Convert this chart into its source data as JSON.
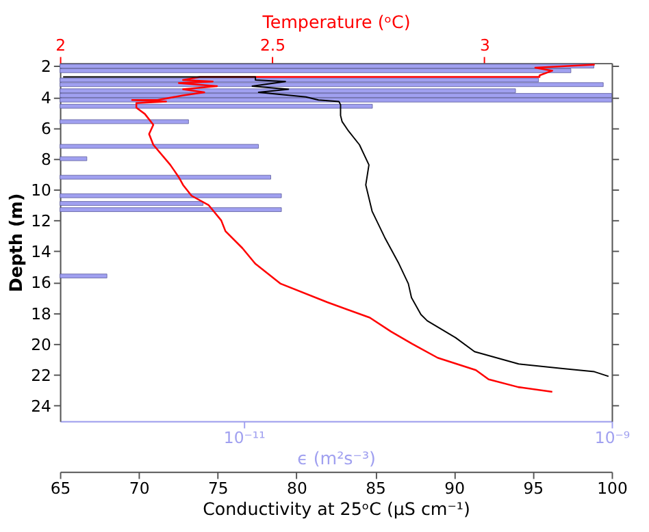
{
  "chart_data": [
    {
      "type": "line",
      "ylabel": "Depth (m)",
      "ylim": [
        25,
        1.8
      ],
      "yticks": [
        2,
        4,
        6,
        8,
        10,
        12,
        14,
        16,
        18,
        20,
        22,
        24
      ],
      "xlabel": "Conductivity at 25ᵒC (μS cm⁻¹)",
      "xlim": [
        65,
        100
      ],
      "xticks": [
        65,
        70,
        75,
        80,
        85,
        90,
        95,
        100
      ],
      "x2label": "Temperature (ᵒC)",
      "x2lim": [
        2,
        3.3
      ],
      "x2ticks": [
        2,
        2.5,
        3
      ],
      "grid": false,
      "series": [
        {
          "axis": "x2",
          "color": "#ff0000",
          "x": [
            3.26,
            3.12,
            3.16,
            3.13,
            3.13,
            2.33,
            2.29,
            2.36,
            2.28,
            2.37,
            2.29,
            2.34,
            2.29,
            2.23,
            2.17,
            2.25,
            2.18,
            2.18,
            2.2,
            2.22,
            2.21,
            2.22,
            2.26,
            2.28,
            2.29,
            2.31,
            2.35,
            2.38,
            2.39,
            2.43,
            2.46,
            2.52,
            2.63,
            2.73,
            2.78,
            2.83,
            2.89,
            2.98,
            3.01,
            3.08,
            3.16
          ],
          "values": [
            1.9,
            2.1,
            2.3,
            2.6,
            2.7,
            2.7,
            2.9,
            3.0,
            3.1,
            3.3,
            3.5,
            3.7,
            3.9,
            4.2,
            4.2,
            4.3,
            4.4,
            4.7,
            5.1,
            5.8,
            6.4,
            7.1,
            8.4,
            9.2,
            9.7,
            10.4,
            11.0,
            12.0,
            12.7,
            13.8,
            14.8,
            16.1,
            17.3,
            18.3,
            19.2,
            20.0,
            20.9,
            21.7,
            22.3,
            22.8,
            23.1
          ]
        },
        {
          "color": "#000000",
          "x": [
            65.2,
            77.4,
            77.4,
            79.3,
            77.2,
            79.5,
            77.6,
            80.6,
            81.4,
            82.7,
            82.8,
            82.8,
            82.9,
            83.3,
            84.0,
            84.6,
            84.4,
            84.8,
            85.6,
            86.5,
            87.1,
            87.3,
            87.9,
            88.3,
            90.1,
            91.3,
            94.1,
            96.9,
            98.9,
            99.8
          ],
          "values": [
            2.7,
            2.7,
            2.9,
            3.0,
            3.3,
            3.5,
            3.7,
            4.0,
            4.2,
            4.3,
            4.5,
            5.2,
            5.6,
            6.2,
            7.1,
            8.4,
            9.7,
            11.4,
            13.1,
            14.8,
            16.1,
            17.0,
            18.1,
            18.5,
            19.6,
            20.5,
            21.3,
            21.6,
            21.8,
            22.1
          ]
        }
      ]
    },
    {
      "type": "bar",
      "orientation": "horizontal",
      "xlabel": "ϵ (m²s⁻³)",
      "xlim": [
        1e-12,
        1e-09
      ],
      "xticks": [
        {
          "value": 1e-11,
          "label": "10⁻¹¹"
        },
        {
          "value": 1e-09,
          "label": "10⁻⁹"
        }
      ],
      "log": "x",
      "ylim": [
        25,
        1.8
      ],
      "yticks": [
        2,
        4,
        6,
        8,
        10,
        12,
        14,
        16,
        18,
        20,
        22,
        24
      ],
      "tick_labels": "x",
      "grid": false,
      "series": [
        {
          "color": "#a0a0f0",
          "x": [
            2.0,
            2.3,
            2.9,
            3.2,
            3.6,
            3.9,
            4.2,
            4.6,
            5.6,
            7.2,
            8.0,
            9.2,
            10.4,
            10.9,
            11.3,
            15.6
          ],
          "values": [
            8e-10,
            6e-10,
            4e-10,
            9e-10,
            3e-10,
            1e-09,
            1e-09,
            5e-11,
            5e-12,
            1.2e-11,
            1.4e-12,
            1.4e-11,
            1.6e-11,
            6e-12,
            1.6e-11,
            1.8e-12
          ]
        }
      ]
    }
  ]
}
